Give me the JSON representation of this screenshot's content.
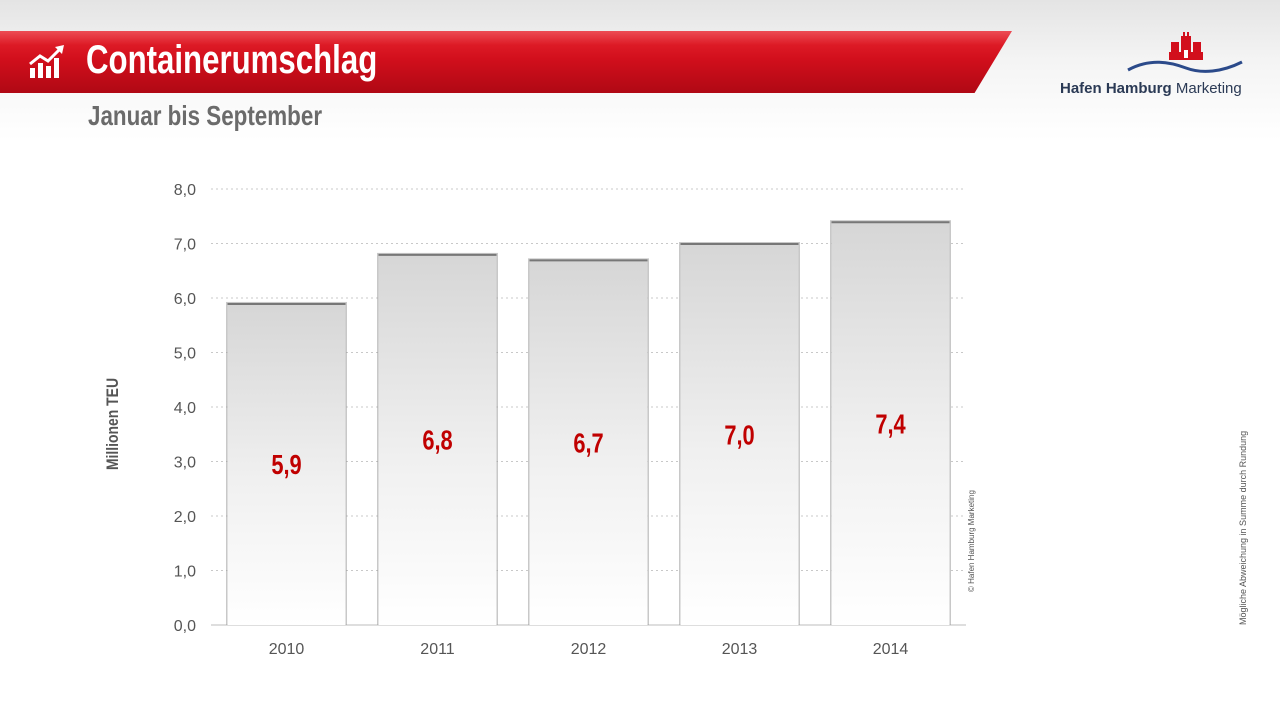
{
  "header": {
    "title": "Containerumschlag",
    "subtitle": "Januar bis September",
    "icon": "chart-growth-icon",
    "accent_color": "#d20f1c"
  },
  "logo": {
    "name_bold": "Hafen Hamburg",
    "name_regular": "Marketing",
    "icon": "hamburg-castle-icon"
  },
  "notes": {
    "copyright": "© Hafen Hamburg Marketing",
    "rounding": "Mögliche Abweichung in Summe durch Rundung"
  },
  "chart_data": {
    "type": "bar",
    "categories": [
      "2010",
      "2011",
      "2012",
      "2013",
      "2014"
    ],
    "values": [
      5.9,
      6.8,
      6.7,
      7.0,
      7.4
    ],
    "value_labels": [
      "5,9",
      "6,8",
      "6,7",
      "7,0",
      "7,4"
    ],
    "ylabel": "Millionen TEU",
    "ylim": [
      0,
      8
    ],
    "yticks": [
      0,
      1,
      2,
      3,
      4,
      5,
      6,
      7,
      8
    ],
    "ytick_labels": [
      "0,0",
      "1,0",
      "2,0",
      "3,0",
      "4,0",
      "5,0",
      "6,0",
      "7,0",
      "8,0"
    ],
    "grid": true,
    "label_color": "#c00000"
  }
}
